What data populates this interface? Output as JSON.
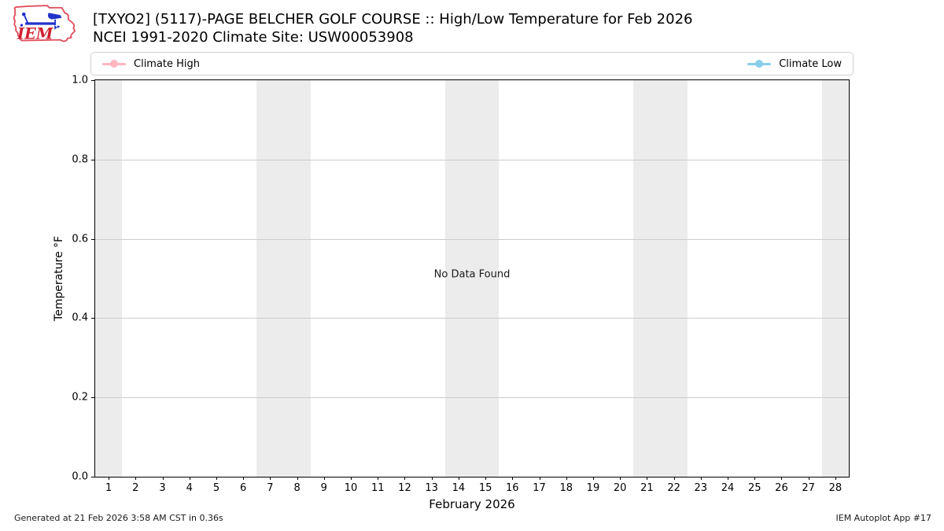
{
  "header": {
    "title": "[TXYO2] (5117)-PAGE BELCHER GOLF COURSE :: High/Low Temperature for Feb 2026",
    "subtitle": "NCEI 1991-2020 Climate Site: USW00053908",
    "logo_text": "IEM"
  },
  "legend": {
    "items": [
      {
        "label": "Climate High",
        "color": "#ffb6c1"
      },
      {
        "label": "Climate Low",
        "color": "#87ceeb"
      }
    ]
  },
  "chart_data": {
    "type": "line",
    "title": "[TXYO2] (5117)-PAGE BELCHER GOLF COURSE :: High/Low Temperature for Feb 2026",
    "subtitle": "NCEI 1991-2020 Climate Site: USW00053908",
    "xlabel": "February 2026",
    "ylabel": "Temperature °F",
    "xlim": [
      0.5,
      28.5
    ],
    "ylim": [
      0,
      1
    ],
    "x_ticks": [
      1,
      2,
      3,
      4,
      5,
      6,
      7,
      8,
      9,
      10,
      11,
      12,
      13,
      14,
      15,
      16,
      17,
      18,
      19,
      20,
      21,
      22,
      23,
      24,
      25,
      26,
      27,
      28
    ],
    "y_ticks": [
      "0.0",
      "0.2",
      "0.4",
      "0.6",
      "0.8",
      "1.0"
    ],
    "grid": "horizontal",
    "legend_position": "top strip, Climate High left / Climate Low right",
    "series": [
      {
        "name": "Climate High",
        "color": "#ffb6c1",
        "x": [],
        "y": []
      },
      {
        "name": "Climate Low",
        "color": "#87ceeb",
        "x": [],
        "y": []
      }
    ],
    "annotation": "No Data Found",
    "weekend_shading_days": [
      [
        0.5,
        1.5
      ],
      [
        6.5,
        8.5
      ],
      [
        13.5,
        15.5
      ],
      [
        20.5,
        22.5
      ],
      [
        27.5,
        28.5
      ]
    ],
    "band_color": "#ececec",
    "grid_color": "#cccccc"
  },
  "footer": {
    "generated": "Generated at 21 Feb 2026 3:58 AM CST in 0.36s",
    "app": "IEM Autoplot App #17"
  }
}
